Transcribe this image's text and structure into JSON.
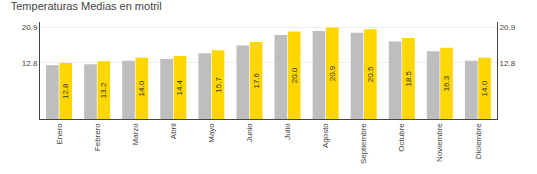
{
  "chart_data": {
    "type": "bar",
    "title": "Temperaturas Medias en motril",
    "categories": [
      "Enero",
      "Febrero",
      "Marzo",
      "Abril",
      "Mayo",
      "Junio",
      "Julio",
      "Agosto",
      "Septiembre",
      "Octubre",
      "Noviembre",
      "Diciembre"
    ],
    "series": [
      {
        "color": "#BEBEBE",
        "values": [
          12.3,
          12.5,
          13.3,
          13.7,
          15.0,
          16.8,
          19.2,
          20.1,
          19.7,
          17.7,
          15.5,
          13.3
        ]
      },
      {
        "color": "#FFD700",
        "data_labels": true,
        "values": [
          12.8,
          13.2,
          14.0,
          14.4,
          15.7,
          17.6,
          20.0,
          20.9,
          20.5,
          18.5,
          16.3,
          14.0
        ],
        "value_labels": [
          "12.8",
          "13.2",
          "14.0",
          "14.4",
          "15.7",
          "17.6",
          "20.0",
          "20.9",
          "20.5",
          "18.5",
          "16.3",
          "14.0"
        ]
      }
    ],
    "ylim": [
      0,
      22.154
    ],
    "yticks": [
      12.8,
      20.9
    ],
    "y2lim": [
      0,
      22.154
    ],
    "y2ticks": [
      12.8,
      20.9
    ],
    "grid": true
  }
}
